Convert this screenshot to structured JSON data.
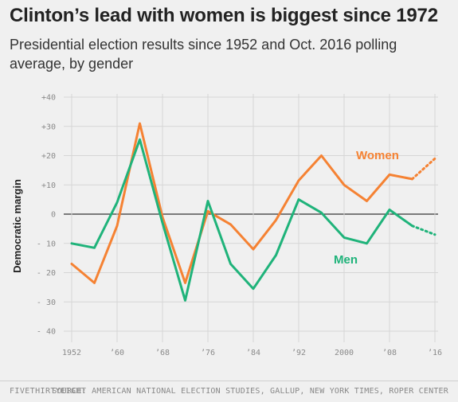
{
  "header": {
    "title": "Clinton’s lead with women is biggest since 1972",
    "subtitle": "Presidential election results since 1952 and Oct. 2016 polling average, by gender"
  },
  "footer": {
    "brand": "FIVETHIRTYEIGHT",
    "source": "SOURCE: AMERICAN NATIONAL ELECTION STUDIES, GALLUP, NEW YORK TIMES, ROPER CENTER"
  },
  "chart_data": {
    "type": "line",
    "title": "Clinton’s lead with women is biggest since 1972",
    "xlabel": "",
    "ylabel": "Democratic margin",
    "xlim": [
      1952,
      2016
    ],
    "ylim": [
      -40,
      40
    ],
    "grid": true,
    "x_ticks": [
      1952,
      1960,
      1968,
      1976,
      1984,
      1992,
      2000,
      2008,
      2016
    ],
    "x_tick_labels": [
      "1952",
      "’60",
      "’68",
      "’76",
      "’84",
      "’92",
      "2000",
      "’08",
      "’16"
    ],
    "y_ticks": [
      40,
      30,
      20,
      10,
      0,
      -10,
      -20,
      -30,
      -40
    ],
    "y_tick_labels": [
      "+40",
      "+30",
      "+20",
      "+10",
      "0",
      "- 10",
      "- 20",
      "- 30",
      "- 40"
    ],
    "series": [
      {
        "name": "Women",
        "color": "#f58233",
        "x": [
          1952,
          1956,
          1960,
          1964,
          1968,
          1972,
          1976,
          1980,
          1984,
          1988,
          1992,
          1996,
          2000,
          2004,
          2008,
          2012
        ],
        "values": [
          -17,
          -23.5,
          -4,
          31,
          -1,
          -23.5,
          1,
          -3.5,
          -12,
          -2,
          11.5,
          20,
          10,
          4.5,
          13.5,
          12
        ],
        "projection": {
          "x": [
            2012,
            2016
          ],
          "values": [
            12,
            19
          ]
        }
      },
      {
        "name": "Men",
        "color": "#1fb37a",
        "x": [
          1952,
          1956,
          1960,
          1964,
          1968,
          1972,
          1976,
          1980,
          1984,
          1988,
          1992,
          1996,
          2000,
          2004,
          2008,
          2012
        ],
        "values": [
          -10,
          -11.5,
          4,
          25.5,
          -3,
          -29.5,
          4.5,
          -17,
          -25.5,
          -14,
          5,
          0.5,
          -8,
          -10,
          1.5,
          -4
        ],
        "projection": {
          "x": [
            2012,
            2016
          ],
          "values": [
            -4,
            -7
          ]
        }
      }
    ]
  }
}
